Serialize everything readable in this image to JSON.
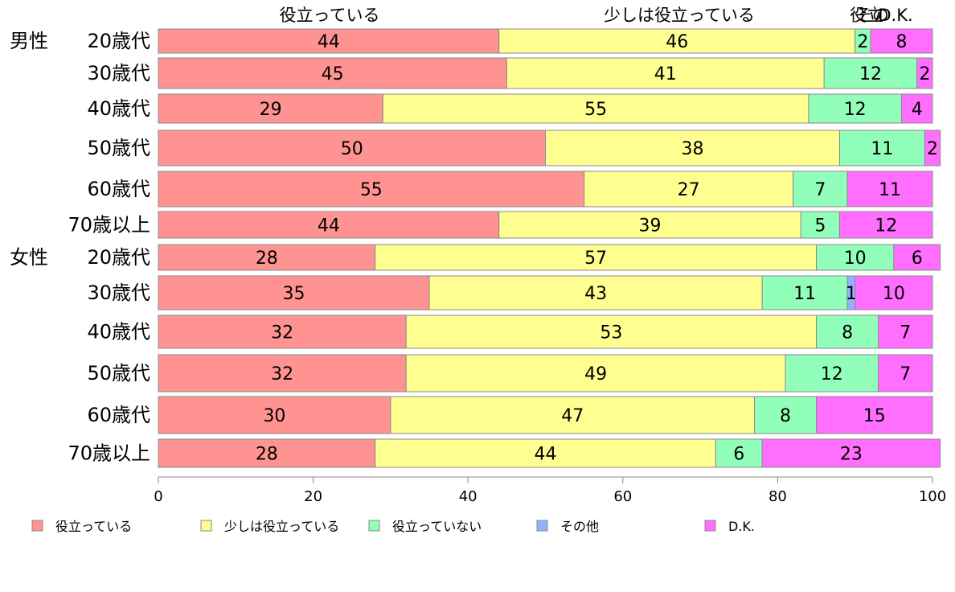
{
  "chart_data": {
    "type": "bar",
    "orientation": "horizontal",
    "stacked": true,
    "xlim": [
      0,
      100
    ],
    "x_ticks": [
      "0",
      "20",
      "40",
      "60",
      "80",
      "100"
    ],
    "group_labels": [
      "男性",
      "女性"
    ],
    "categories": [
      "20歳代",
      "30歳代",
      "40歳代",
      "50歳代",
      "60歳代",
      "70歳以上",
      "20歳代",
      "30歳代",
      "40歳代",
      "50歳代",
      "60歳代",
      "70歳以上"
    ],
    "top_labels": [
      "役立っている",
      "少しは役立っている",
      "役立",
      "その",
      "D.K."
    ],
    "series": [
      {
        "name": "役立っている",
        "color": "#ff9391",
        "values": [
          44,
          45,
          29,
          50,
          55,
          44,
          28,
          35,
          32,
          32,
          30,
          28
        ]
      },
      {
        "name": "少しは役立っている",
        "color": "#ffff91",
        "values": [
          46,
          41,
          55,
          38,
          27,
          39,
          57,
          43,
          53,
          49,
          47,
          44
        ]
      },
      {
        "name": "役立っていない",
        "color": "#91ffb9",
        "values": [
          2,
          12,
          12,
          11,
          7,
          5,
          10,
          11,
          8,
          12,
          8,
          6
        ]
      },
      {
        "name": "その他",
        "color": "#91b2ff",
        "values": [
          0,
          0,
          0,
          0,
          0,
          0,
          0,
          1,
          0,
          0,
          0,
          0
        ]
      },
      {
        "name": "D.K.",
        "color": "#ff6eff",
        "values": [
          8,
          2,
          4,
          2,
          11,
          12,
          6,
          10,
          7,
          7,
          15,
          23
        ]
      }
    ],
    "grid": false,
    "legend_position": "bottom"
  }
}
